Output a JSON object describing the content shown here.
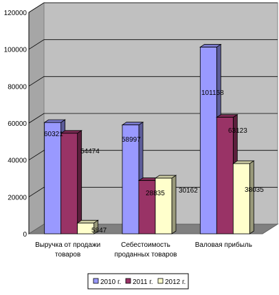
{
  "chart_data": {
    "type": "bar",
    "title": "",
    "xlabel": "",
    "ylabel": "",
    "ylim": [
      0,
      120000
    ],
    "yticks": [
      0,
      20000,
      40000,
      60000,
      80000,
      100000,
      120000
    ],
    "ytick_labels": [
      "0",
      "20000",
      "40000",
      "60000",
      "80000",
      "100000",
      "120000"
    ],
    "grid": true,
    "three_d": true,
    "legend_position": "bottom",
    "categories": [
      [
        "Выручка от продажи",
        "товаров"
      ],
      [
        "Себестоимость",
        "проданных товаров"
      ],
      [
        "Валовая прибыль"
      ]
    ],
    "series": [
      {
        "name": "2010 г.",
        "color": "#9999ff",
        "values": [
          60321,
          58997,
          101158
        ],
        "labels": [
          "60321",
          "58997",
          "101158"
        ]
      },
      {
        "name": "2011 г.",
        "color": "#993366",
        "values": [
          54474,
          28835,
          63123
        ],
        "labels": [
          "54474",
          "28835",
          "63123"
        ]
      },
      {
        "name": "2012 г.",
        "color": "#ffffcc",
        "values": [
          5847,
          30162,
          38035
        ],
        "labels": [
          "5847",
          "30162",
          "38035"
        ]
      }
    ]
  }
}
